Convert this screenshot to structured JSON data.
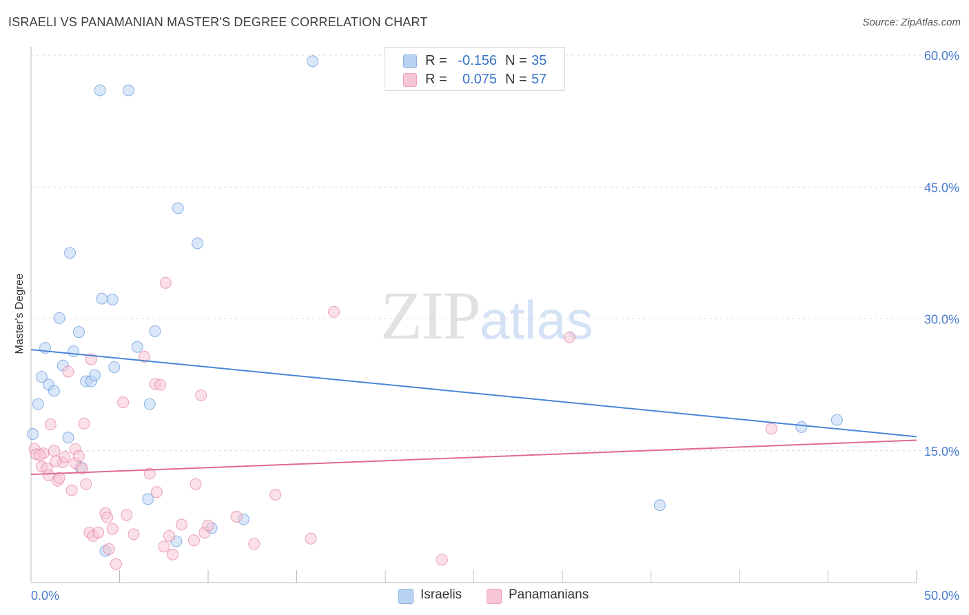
{
  "header": {
    "title": "ISRAELI VS PANAMANIAN MASTER'S DEGREE CORRELATION CHART",
    "source": "Source: ZipAtlas.com"
  },
  "watermark": {
    "zip": "ZIP",
    "atlas": "atlas"
  },
  "legend": {
    "rows": [
      {
        "r_label": "R =",
        "r_value": "-0.156",
        "n_label": "N =",
        "n_value": "35",
        "color": "#b9d3f3"
      },
      {
        "r_label": "R =",
        "r_value": "0.075",
        "n_label": "N =",
        "n_value": "57",
        "color": "#f7c6d6"
      }
    ]
  },
  "bottom_legend": {
    "israelis": "Israelis",
    "panamanians": "Panamanians"
  },
  "chart_data": {
    "type": "scatter",
    "title": "ISRAELI VS PANAMANIAN MASTER'S DEGREE CORRELATION CHART",
    "xlabel": "",
    "ylabel": "Master's Degree",
    "xlim": [
      0,
      50
    ],
    "ylim": [
      0,
      60
    ],
    "x_tick_labels": [
      "0.0%",
      "50.0%"
    ],
    "y_ticks": [
      15,
      30,
      45,
      60
    ],
    "y_tick_labels": [
      "15.0%",
      "30.0%",
      "45.0%",
      "60.0%"
    ],
    "grid": true,
    "series": [
      {
        "name": "Israelis",
        "color": "#4a86d8",
        "fill": "#b9d3f3",
        "trend": {
          "x": [
            0,
            50
          ],
          "y": [
            26.5,
            16.6
          ]
        },
        "points": [
          [
            0.1,
            16.9
          ],
          [
            0.4,
            20.3
          ],
          [
            0.6,
            23.4
          ],
          [
            0.8,
            26.7
          ],
          [
            1.0,
            22.5
          ],
          [
            1.3,
            21.8
          ],
          [
            1.6,
            30.1
          ],
          [
            1.8,
            24.7
          ],
          [
            2.1,
            16.5
          ],
          [
            2.2,
            37.5
          ],
          [
            2.4,
            26.3
          ],
          [
            2.7,
            28.5
          ],
          [
            2.8,
            13.1
          ],
          [
            3.1,
            22.9
          ],
          [
            3.4,
            22.9
          ],
          [
            3.6,
            23.6
          ],
          [
            3.9,
            56.0
          ],
          [
            4.0,
            32.3
          ],
          [
            4.2,
            3.6
          ],
          [
            4.6,
            32.2
          ],
          [
            4.7,
            24.5
          ],
          [
            5.5,
            56.0
          ],
          [
            6.0,
            26.8
          ],
          [
            6.6,
            9.5
          ],
          [
            6.7,
            20.3
          ],
          [
            7.0,
            28.6
          ],
          [
            8.2,
            4.7
          ],
          [
            8.3,
            42.6
          ],
          [
            9.4,
            38.6
          ],
          [
            10.2,
            6.2
          ],
          [
            12.0,
            7.2
          ],
          [
            15.9,
            59.3
          ],
          [
            35.5,
            8.8
          ],
          [
            43.5,
            17.7
          ],
          [
            45.5,
            18.5
          ]
        ]
      },
      {
        "name": "Panamanians",
        "color": "#e06a93",
        "fill": "#f7c6d6",
        "trend": {
          "x": [
            0,
            50
          ],
          "y": [
            12.3,
            16.2
          ]
        },
        "points": [
          [
            0.2,
            15.2
          ],
          [
            0.3,
            14.6
          ],
          [
            0.6,
            13.2
          ],
          [
            0.7,
            14.7
          ],
          [
            0.9,
            13.0
          ],
          [
            1.0,
            12.2
          ],
          [
            1.1,
            18.0
          ],
          [
            1.3,
            15.0
          ],
          [
            1.5,
            11.6
          ],
          [
            1.6,
            11.9
          ],
          [
            1.8,
            13.7
          ],
          [
            1.9,
            14.3
          ],
          [
            2.1,
            24.0
          ],
          [
            2.3,
            10.5
          ],
          [
            2.5,
            13.6
          ],
          [
            2.5,
            15.2
          ],
          [
            2.7,
            14.4
          ],
          [
            2.9,
            13.0
          ],
          [
            3.0,
            18.1
          ],
          [
            3.1,
            11.2
          ],
          [
            3.3,
            5.7
          ],
          [
            3.4,
            25.4
          ],
          [
            3.5,
            5.3
          ],
          [
            3.8,
            5.7
          ],
          [
            4.2,
            7.9
          ],
          [
            4.3,
            7.4
          ],
          [
            4.4,
            3.8
          ],
          [
            4.6,
            6.1
          ],
          [
            4.8,
            2.1
          ],
          [
            5.2,
            20.5
          ],
          [
            5.4,
            7.7
          ],
          [
            5.8,
            5.5
          ],
          [
            6.4,
            25.7
          ],
          [
            6.7,
            12.4
          ],
          [
            7.0,
            22.6
          ],
          [
            7.1,
            10.3
          ],
          [
            7.3,
            22.5
          ],
          [
            7.5,
            4.1
          ],
          [
            7.6,
            34.1
          ],
          [
            7.8,
            5.3
          ],
          [
            8.0,
            3.2
          ],
          [
            8.5,
            6.6
          ],
          [
            9.2,
            4.8
          ],
          [
            9.3,
            11.2
          ],
          [
            9.6,
            21.3
          ],
          [
            9.8,
            5.7
          ],
          [
            10.0,
            6.5
          ],
          [
            11.6,
            7.5
          ],
          [
            12.6,
            4.4
          ],
          [
            13.8,
            10.0
          ],
          [
            15.8,
            5.0
          ],
          [
            17.1,
            30.8
          ],
          [
            23.2,
            2.6
          ],
          [
            30.4,
            27.9
          ],
          [
            41.8,
            17.5
          ],
          [
            0.5,
            14.5
          ],
          [
            1.4,
            13.8
          ]
        ]
      }
    ]
  }
}
